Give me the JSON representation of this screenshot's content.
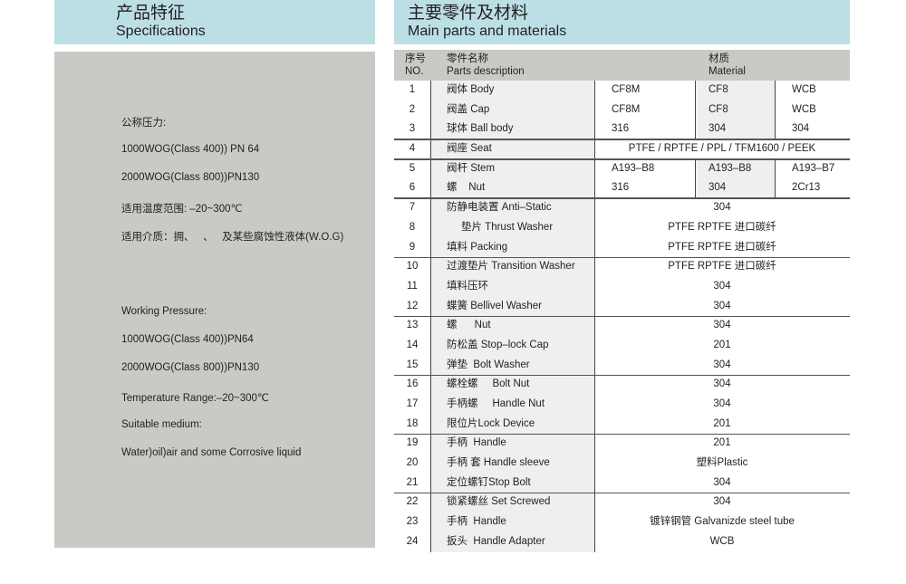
{
  "left_header": {
    "cn": "产品特征",
    "en": "Specifications"
  },
  "right_header": {
    "cn": "主要零件及材料",
    "en": "Main parts and materials"
  },
  "specs": [
    "公称压力:",
    "1000WOG(Class 400)) PN 64",
    "2000WOG(Class 800))PN130",
    "适用温度范围: –20~300℃",
    "适用介质：拥、   、   及某些腐蚀性液体(W.O.G)",
    "Working Pressure:",
    "1000WOG(Class 400))PN64",
    "2000WOG(Class 800))PN130",
    "Temperature Range:–20~300℃",
    "Suitable medium:",
    "Water)oil)air and some Corrosive liquid"
  ],
  "table": {
    "headers": {
      "no_cn": "序号",
      "no_en": "NO.",
      "name_cn": "零件名称",
      "name_en": "Parts  description",
      "mat_cn": "材质",
      "mat_en": "Material"
    },
    "rows": [
      {
        "no": "1",
        "name": "阀体 Body",
        "m": [
          "CF8M",
          "CF8",
          "WCB"
        ]
      },
      {
        "no": "2",
        "name": "阀盖 Cap",
        "m": [
          "CF8M",
          "CF8",
          "WCB"
        ]
      },
      {
        "no": "3",
        "name": "球体 Ball body",
        "m": [
          "316",
          "304",
          "304"
        ]
      },
      {
        "no": "4",
        "name": "阀座 Seat",
        "mat": "PTFE / RPTFE / PPL / TFM1600 / PEEK"
      },
      {
        "no": "5",
        "name": "阀杆 Stem",
        "m": [
          "A193–B8",
          "A193–B8",
          "A193–B7"
        ]
      },
      {
        "no": "6",
        "name": "螺    Nut",
        "m": [
          "316",
          "304",
          "2Cr13"
        ]
      },
      {
        "no": "7",
        "name": "防静电装置 Anti–Static",
        "mat": "304"
      },
      {
        "no": "8",
        "name": "     垫片 Thrust Washer",
        "mat": "PTFE RPTFE 进口碳纤"
      },
      {
        "no": "9",
        "name": "填料 Packing",
        "mat": "PTFE RPTFE 进口碳纤"
      },
      {
        "no": "10",
        "name": "过渡垫片 Transition Washer",
        "mat": "PTFE RPTFE 进口碳纤"
      },
      {
        "no": "11",
        "name": "填料压环",
        "mat": "304"
      },
      {
        "no": "12",
        "name": "蝶簧 Bellivel Washer",
        "mat": "304"
      },
      {
        "no": "13",
        "name": "螺      Nut",
        "mat": "304"
      },
      {
        "no": "14",
        "name": "防松盖 Stop–lock Cap",
        "mat": "201"
      },
      {
        "no": "15",
        "name": "弹垫  Bolt Washer",
        "mat": "304"
      },
      {
        "no": "16",
        "name": "螺栓螺     Bolt Nut",
        "mat": "304"
      },
      {
        "no": "17",
        "name": "手柄螺     Handle Nut",
        "mat": "304"
      },
      {
        "no": "18",
        "name": "限位片Lock Device",
        "mat": "201"
      },
      {
        "no": "19",
        "name": "手柄  Handle",
        "mat": "201"
      },
      {
        "no": "20",
        "name": "手柄 套 Handle sleeve",
        "mat": "塑料Plastic"
      },
      {
        "no": "21",
        "name": "定位螺钉Stop Bolt",
        "mat": "304"
      },
      {
        "no": "22",
        "name": "锁紧螺丝 Set Screwed",
        "mat": "304"
      },
      {
        "no": "23",
        "name": "手柄  Handle",
        "mat": "镀锌钢管 Galvanizde steel tube"
      },
      {
        "no": "24",
        "name": "扳头  Handle Adapter",
        "mat": "WCB"
      }
    ]
  }
}
